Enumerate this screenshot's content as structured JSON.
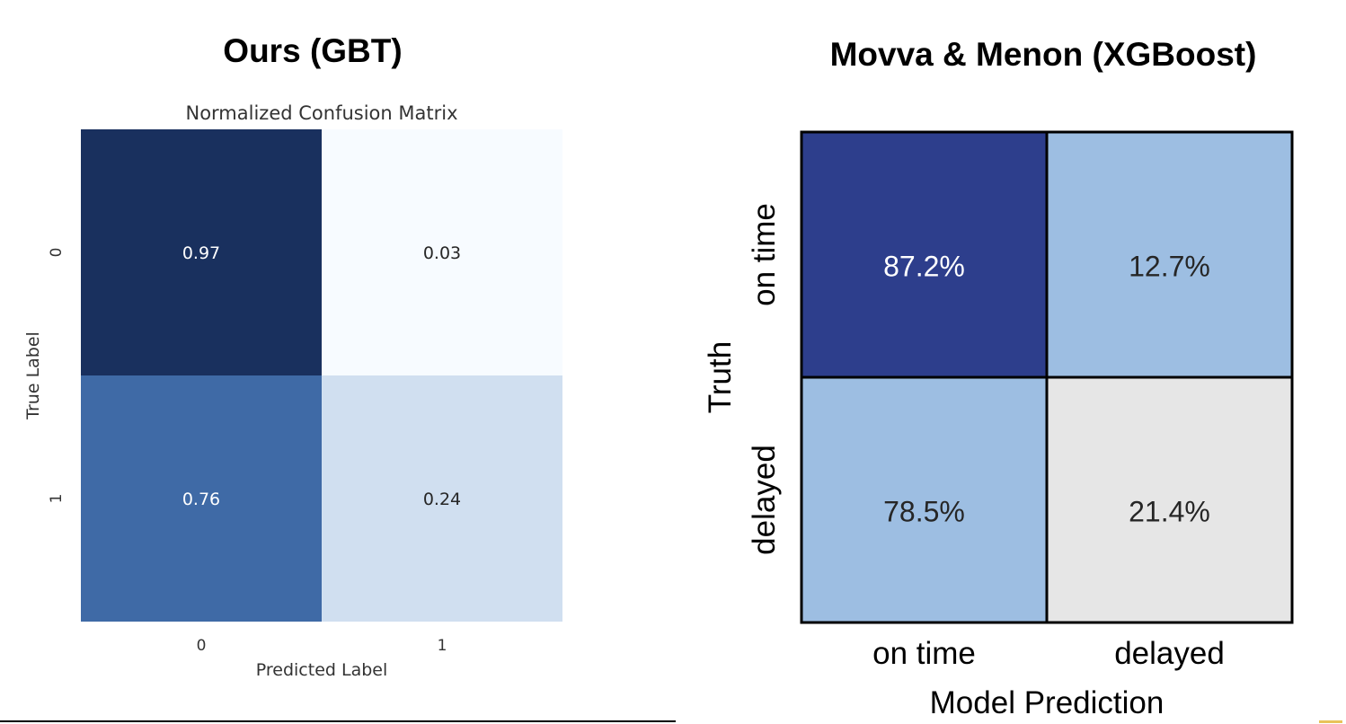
{
  "panels": {
    "left_title": "Ours (GBT)",
    "right_title": "Movva & Menon (XGBoost)"
  },
  "chart_data": [
    {
      "type": "heatmap",
      "title": "Normalized Confusion Matrix",
      "xlabel": "Predicted Label",
      "ylabel": "True Label",
      "x_ticks": [
        "0",
        "1"
      ],
      "y_ticks": [
        "0",
        "1"
      ],
      "cells": [
        [
          {
            "label": "0.97",
            "value": 0.97,
            "color": "#19305e"
          },
          {
            "label": "0.03",
            "value": 0.03,
            "color": "#f7fbff"
          }
        ],
        [
          {
            "label": "0.76",
            "value": 0.76,
            "color": "#3f6aa6"
          },
          {
            "label": "0.24",
            "value": 0.24,
            "color": "#d0dff0"
          }
        ]
      ],
      "colormap": "Blues",
      "grid": false
    },
    {
      "type": "heatmap",
      "title": "",
      "xlabel": "Model Prediction",
      "ylabel": "Truth",
      "x_ticks": [
        "on time",
        "delayed"
      ],
      "y_ticks": [
        "on time",
        "delayed"
      ],
      "cells": [
        [
          {
            "label": "87.2%",
            "value": 87.2,
            "color": "#2d3e8c"
          },
          {
            "label": "12.7%",
            "value": 12.7,
            "color": "#9dbee2"
          }
        ],
        [
          {
            "label": "78.5%",
            "value": 78.5,
            "color": "#9dbee2"
          },
          {
            "label": "21.4%",
            "value": 21.4,
            "color": "#e6e6e6"
          }
        ]
      ],
      "grid": true
    }
  ]
}
